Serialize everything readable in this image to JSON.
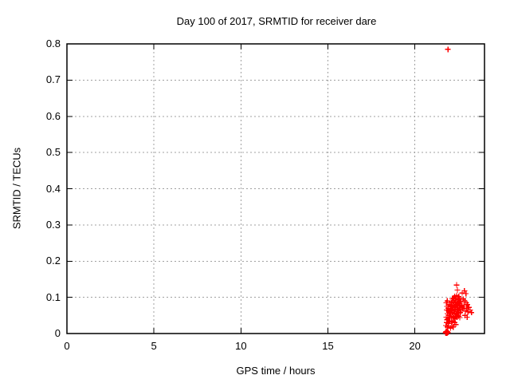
{
  "chart_data": {
    "type": "scatter",
    "title": "Day 100 of 2017, SRMTID for receiver dare",
    "xlabel": "GPS time / hours",
    "ylabel": "SRMTID / TECUs",
    "xlim": [
      0,
      24
    ],
    "ylim": [
      0,
      0.8
    ],
    "xticks": [
      0,
      5,
      10,
      15,
      20
    ],
    "xtick_labels": [
      "0",
      "5",
      "10",
      "15",
      "20"
    ],
    "yticks": [
      0,
      0.1,
      0.2,
      0.3,
      0.4,
      0.5,
      0.6,
      0.7,
      0.8
    ],
    "ytick_labels": [
      "0",
      "0.1",
      "0.2",
      "0.3",
      "0.4",
      "0.5",
      "0.6",
      "0.7",
      "0.8"
    ],
    "grid": true,
    "legend": "none",
    "style": {
      "marker_symbol": "plus",
      "marker_color": "#ff0000",
      "marker_size": 7,
      "grid_color": "#a0a0a0",
      "axis_color": "#000000",
      "text_color": "#000000",
      "background": "#ffffff"
    },
    "series": [
      {
        "name": "SRMTID",
        "points": [
          [
            21.76,
            0.002
          ],
          [
            21.79,
            0.001
          ],
          [
            21.82,
            0.003
          ],
          [
            21.85,
            0.001
          ],
          [
            21.88,
            0.004
          ],
          [
            21.8,
            0.005
          ],
          [
            21.84,
            0.006
          ],
          [
            21.87,
            0.002
          ],
          [
            21.78,
            0.004
          ],
          [
            21.9,
            0.003
          ],
          [
            21.78,
            0.022
          ],
          [
            21.82,
            0.03
          ],
          [
            21.86,
            0.018
          ],
          [
            21.9,
            0.04
          ],
          [
            21.93,
            0.028
          ],
          [
            21.96,
            0.05
          ],
          [
            21.99,
            0.035
          ],
          [
            21.95,
            0.062
          ],
          [
            21.88,
            0.055
          ],
          [
            21.92,
            0.07
          ],
          [
            21.97,
            0.08
          ],
          [
            22.0,
            0.06
          ],
          [
            21.8,
            0.045
          ],
          [
            21.83,
            0.065
          ],
          [
            21.85,
            0.075
          ],
          [
            21.81,
            0.085
          ],
          [
            21.86,
            0.09
          ],
          [
            21.84,
            0.038
          ],
          [
            22.05,
            0.015
          ],
          [
            22.12,
            0.022
          ],
          [
            22.2,
            0.018
          ],
          [
            22.28,
            0.03
          ],
          [
            22.35,
            0.025
          ],
          [
            22.1,
            0.032
          ],
          [
            22.18,
            0.035
          ],
          [
            22.3,
            0.04
          ],
          [
            22.02,
            0.046
          ],
          [
            22.1,
            0.044
          ],
          [
            22.18,
            0.047
          ],
          [
            22.26,
            0.043
          ],
          [
            22.34,
            0.046
          ],
          [
            22.42,
            0.045
          ],
          [
            22.5,
            0.048
          ],
          [
            22.58,
            0.044
          ],
          [
            22.05,
            0.056
          ],
          [
            22.13,
            0.058
          ],
          [
            22.21,
            0.055
          ],
          [
            22.29,
            0.057
          ],
          [
            22.37,
            0.054
          ],
          [
            22.45,
            0.057
          ],
          [
            22.53,
            0.056
          ],
          [
            22.61,
            0.058
          ],
          [
            22.03,
            0.067
          ],
          [
            22.11,
            0.065
          ],
          [
            22.19,
            0.068
          ],
          [
            22.27,
            0.064
          ],
          [
            22.35,
            0.067
          ],
          [
            22.43,
            0.066
          ],
          [
            22.51,
            0.065
          ],
          [
            22.59,
            0.068
          ],
          [
            22.67,
            0.066
          ],
          [
            22.06,
            0.077
          ],
          [
            22.14,
            0.075
          ],
          [
            22.22,
            0.078
          ],
          [
            22.3,
            0.074
          ],
          [
            22.38,
            0.077
          ],
          [
            22.46,
            0.076
          ],
          [
            22.54,
            0.075
          ],
          [
            22.62,
            0.078
          ],
          [
            22.7,
            0.076
          ],
          [
            22.09,
            0.086
          ],
          [
            22.17,
            0.088
          ],
          [
            22.25,
            0.085
          ],
          [
            22.33,
            0.087
          ],
          [
            22.41,
            0.084
          ],
          [
            22.49,
            0.087
          ],
          [
            22.57,
            0.086
          ],
          [
            22.65,
            0.088
          ],
          [
            22.15,
            0.096
          ],
          [
            22.23,
            0.098
          ],
          [
            22.31,
            0.095
          ],
          [
            22.39,
            0.097
          ],
          [
            22.47,
            0.094
          ],
          [
            22.55,
            0.097
          ],
          [
            22.63,
            0.096
          ],
          [
            22.28,
            0.103
          ],
          [
            22.4,
            0.105
          ],
          [
            22.52,
            0.102
          ],
          [
            22.4,
            0.134
          ],
          [
            22.44,
            0.12
          ],
          [
            22.72,
            0.112
          ],
          [
            22.85,
            0.118
          ],
          [
            22.93,
            0.11
          ],
          [
            22.78,
            0.095
          ],
          [
            22.86,
            0.09
          ],
          [
            22.95,
            0.085
          ],
          [
            23.02,
            0.08
          ],
          [
            23.1,
            0.072
          ],
          [
            23.18,
            0.065
          ],
          [
            23.25,
            0.058
          ],
          [
            23.05,
            0.06
          ],
          [
            22.75,
            0.068
          ],
          [
            22.82,
            0.075
          ],
          [
            22.9,
            0.062
          ],
          [
            22.98,
            0.07
          ],
          [
            22.88,
            0.05
          ],
          [
            23.0,
            0.045
          ],
          [
            21.9,
            0.785
          ]
        ]
      }
    ]
  }
}
